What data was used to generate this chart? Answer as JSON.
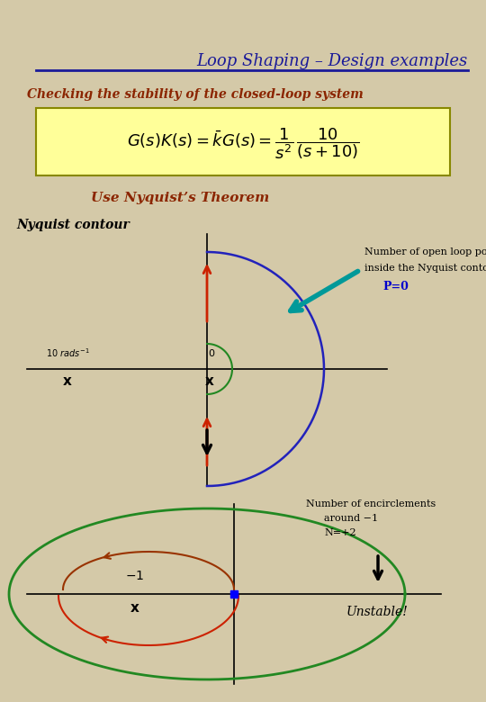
{
  "bg_color": "#d4c9a8",
  "title": "Loop Shaping – Design examples",
  "title_color": "#1a1a99",
  "title_fontsize": 13,
  "subtitle": "Checking the stability of the closed-loop system",
  "subtitle_color": "#8b2500",
  "subtitle_fontsize": 10,
  "use_theorem": "Use Nyquist’s Theorem",
  "nyquist_label": "Nyquist contour",
  "note1_line1": "Number of open loop poles",
  "note1_line2": "inside the Nyquist contour",
  "note1_line3": "P=0",
  "note1_p_color": "#0000cc",
  "note2_line1": "Number of encirclements",
  "note2_line2": "around −1",
  "note2_line3": "N=+2",
  "unstable": "Unstable!",
  "arrow_color_teal": "#009999",
  "line_color_blue": "#2222bb",
  "line_color_green": "#228822",
  "line_color_red": "#cc2200",
  "line_color_brown": "#993300"
}
